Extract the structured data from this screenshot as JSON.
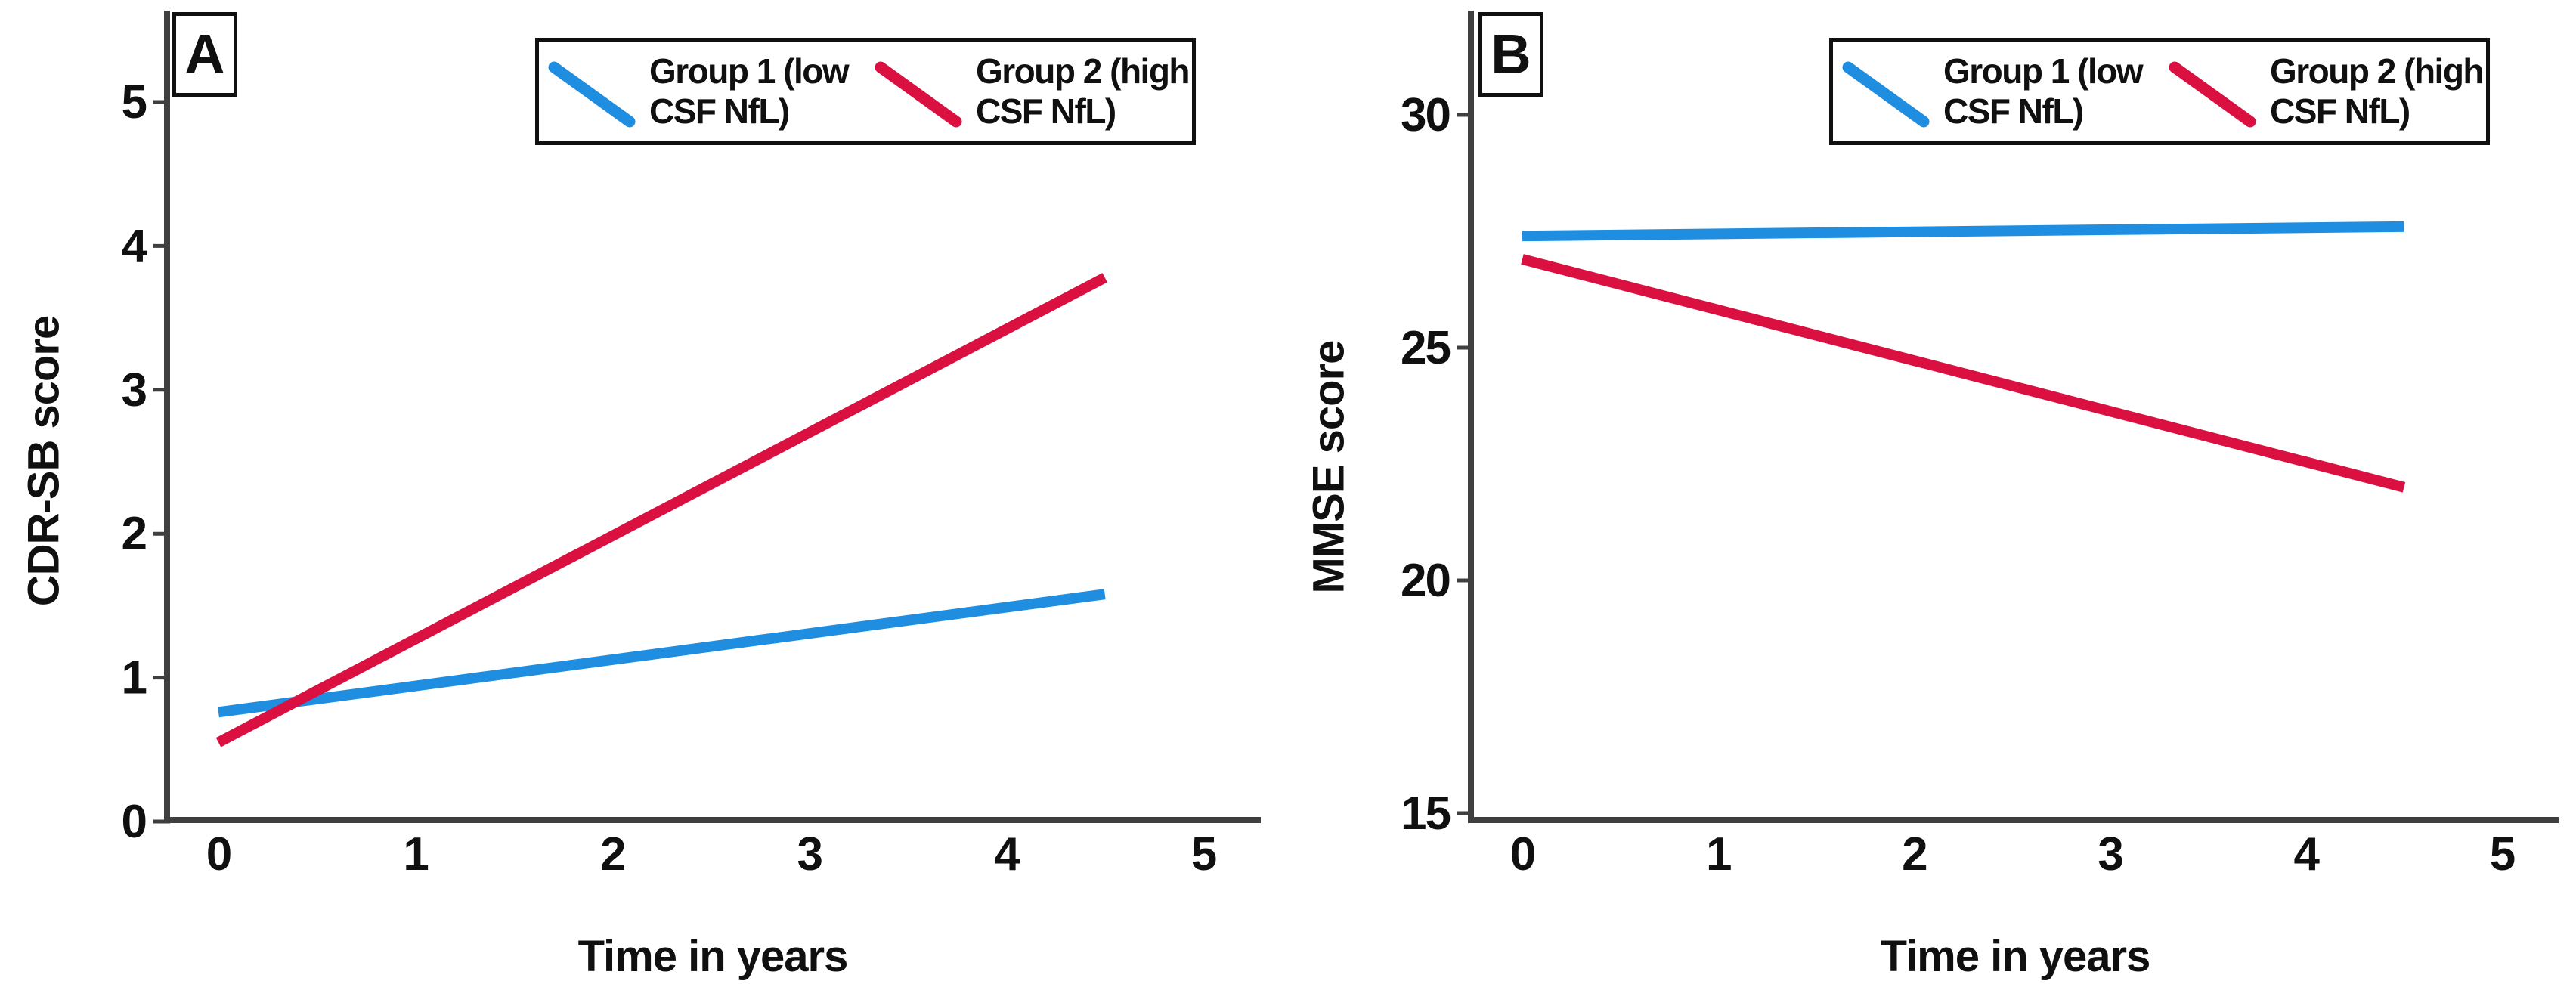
{
  "figure": {
    "background": "#ffffff",
    "text_color": "#101010",
    "axis_color": "#3f3f3f"
  },
  "chart_data": [
    {
      "type": "line",
      "panel_label": "A",
      "xlabel": "Time in years",
      "ylabel": "CDR-SB score",
      "xlim": [
        0,
        5
      ],
      "ylim": [
        0,
        5
      ],
      "xticks": [
        0,
        1,
        2,
        3,
        4,
        5
      ],
      "yticks": [
        0,
        1,
        2,
        3,
        4,
        5
      ],
      "grid": false,
      "legend_position": "top",
      "series": [
        {
          "name": "Group 1 (low CSF NfL)",
          "color": "#1f8ee0",
          "x": [
            0,
            4.5
          ],
          "y": [
            0.76,
            1.58
          ]
        },
        {
          "name": "Group 2 (high CSF NfL)",
          "color": "#d91040",
          "x": [
            0,
            4.5
          ],
          "y": [
            0.55,
            3.78
          ]
        }
      ]
    },
    {
      "type": "line",
      "panel_label": "B",
      "xlabel": "Time in years",
      "ylabel": "MMSE score",
      "xlim": [
        0,
        5
      ],
      "ylim": [
        15,
        30
      ],
      "xticks": [
        0,
        1,
        2,
        3,
        4,
        5
      ],
      "yticks": [
        15,
        20,
        25,
        30
      ],
      "grid": false,
      "legend_position": "top",
      "series": [
        {
          "name": "Group 1 (low CSF NfL)",
          "color": "#1f8ee0",
          "x": [
            0,
            4.5
          ],
          "y": [
            27.4,
            27.6
          ]
        },
        {
          "name": "Group 2 (high CSF NfL)",
          "color": "#d91040",
          "x": [
            0,
            4.5
          ],
          "y": [
            26.9,
            22.0
          ]
        }
      ]
    }
  ]
}
